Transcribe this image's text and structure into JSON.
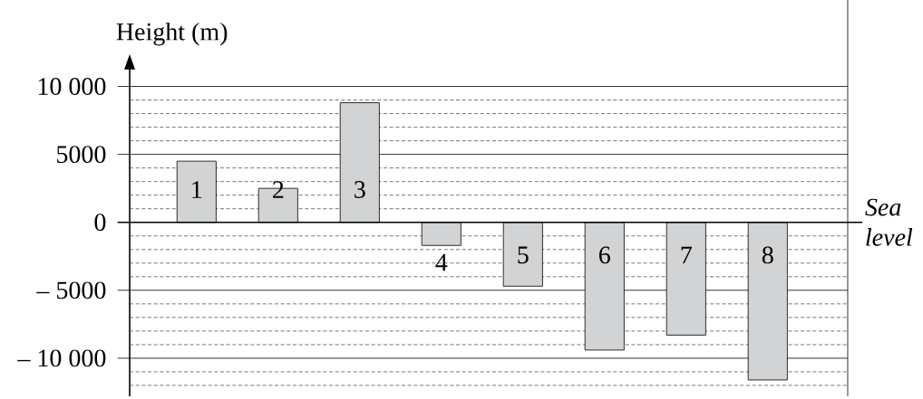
{
  "chart_data": {
    "type": "bar",
    "ylabel": "Height (m)",
    "categories": [
      "1",
      "2",
      "3",
      "4",
      "5",
      "6",
      "7",
      "8"
    ],
    "values": [
      4500,
      2500,
      8800,
      -1700,
      -4700,
      -9400,
      -8300,
      -11600
    ],
    "color": "#d1d3d4",
    "ylim": [
      -12800,
      11300
    ],
    "yticks": [
      {
        "value": -12000,
        "label": null
      },
      {
        "value": -11000,
        "label": null
      },
      {
        "value": -10000,
        "label": "– 10 000"
      },
      {
        "value": -9000,
        "label": null
      },
      {
        "value": -8000,
        "label": null
      },
      {
        "value": -7000,
        "label": null
      },
      {
        "value": -6000,
        "label": null
      },
      {
        "value": -5000,
        "label": "– 5000"
      },
      {
        "value": -4000,
        "label": null
      },
      {
        "value": -3000,
        "label": null
      },
      {
        "value": -2000,
        "label": null
      },
      {
        "value": -1000,
        "label": null
      },
      0,
      {
        "value": 1000,
        "label": null
      },
      {
        "value": 2000,
        "label": null
      },
      {
        "value": 3000,
        "label": null
      },
      {
        "value": 4000,
        "label": null
      },
      5000,
      {
        "value": 6000,
        "label": null
      },
      {
        "value": 7000,
        "label": null
      },
      {
        "value": 8000,
        "label": null
      },
      {
        "value": 9000,
        "label": null
      },
      {
        "value": 10000,
        "label": "10 000"
      }
    ],
    "grid": "y",
    "annotations": [
      "*Sea level*"
    ]
  }
}
